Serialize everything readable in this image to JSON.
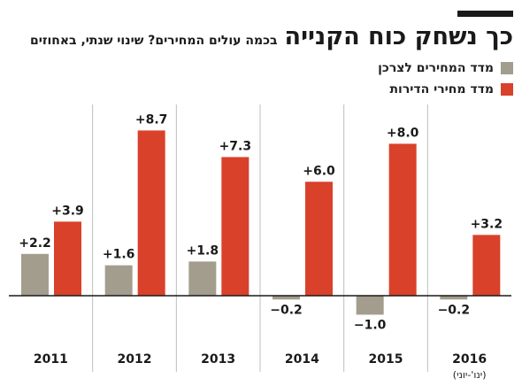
{
  "header": {
    "title": "כך נשחק כוח הקנייה",
    "subtitle": "בכמה עולים המחירים? שינוי שנתי, באחוזים"
  },
  "colors": {
    "consumer": "#a39d8e",
    "housing": "#d9412a",
    "gridline": "#bdbdbd",
    "baseline": "#1a1a1a"
  },
  "chart_data": {
    "type": "bar",
    "categories": [
      "2011",
      "2012",
      "2013",
      "2014",
      "2015",
      "2016"
    ],
    "category_notes": [
      "",
      "",
      "",
      "",
      "",
      "(ינו'-יוני)"
    ],
    "series": [
      {
        "name": "מדד המחירים לצרכן",
        "values": [
          2.2,
          1.6,
          1.8,
          -0.2,
          -1.0,
          -0.2
        ],
        "labels": [
          "+2.2",
          "+1.6",
          "+1.8",
          "−0.2",
          "−1.0",
          "−0.2"
        ]
      },
      {
        "name": "מדד מחירי הדירות",
        "values": [
          3.9,
          8.7,
          7.3,
          6.0,
          8.0,
          3.2
        ],
        "labels": [
          "+3.9",
          "+8.7",
          "+7.3",
          "+6.0",
          "+8.0",
          "+3.2"
        ]
      }
    ],
    "title": "כך נשחק כוח הקנייה",
    "ylim": [
      -1.5,
      9.5
    ],
    "grid": "vertical-separators",
    "legend": "top-right"
  }
}
